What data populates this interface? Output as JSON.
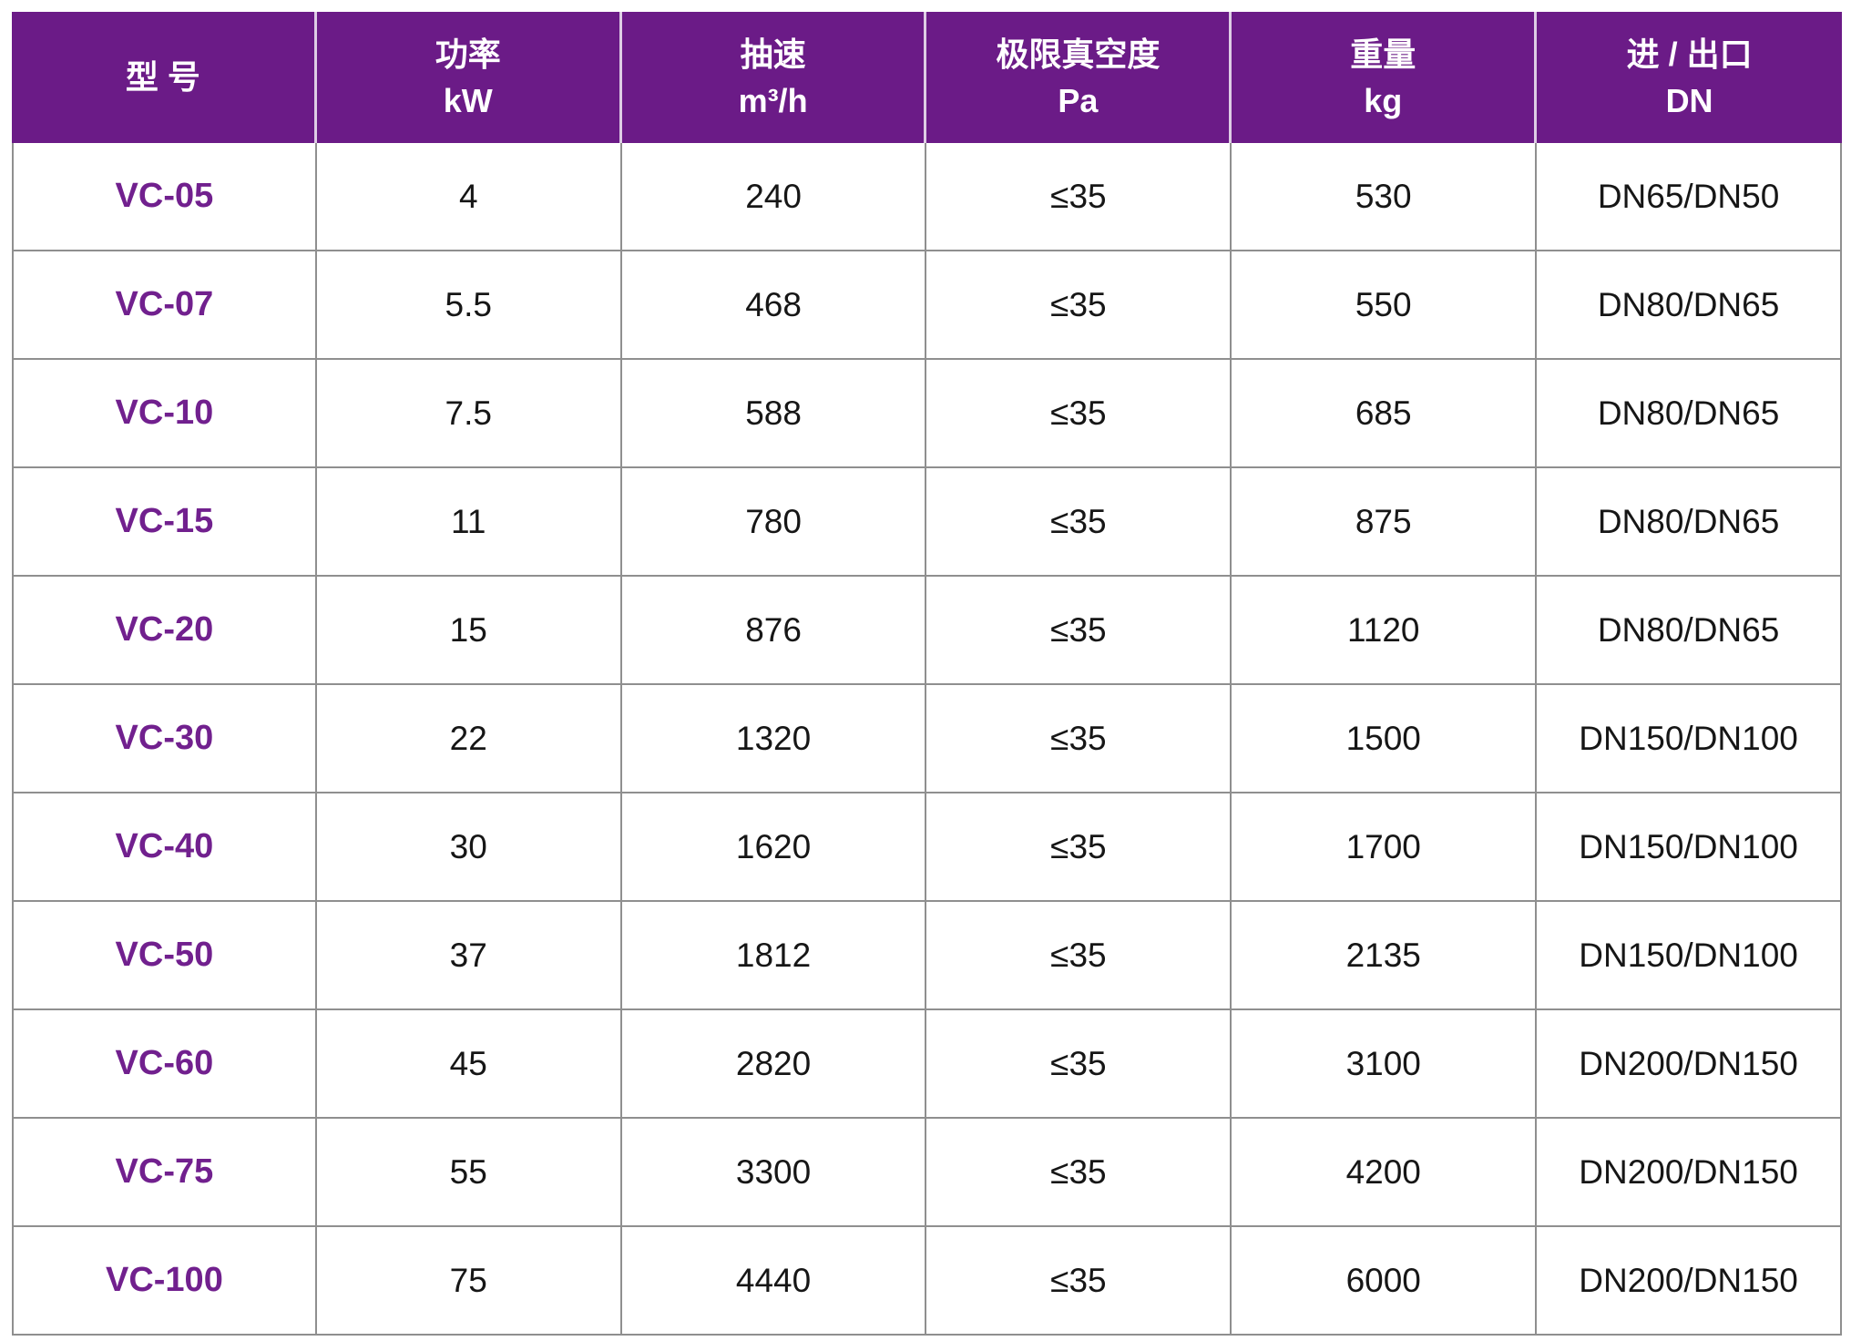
{
  "table": {
    "columns": [
      {
        "line1": "型  号",
        "line2": ""
      },
      {
        "line1": "功率",
        "line2": "kW"
      },
      {
        "line1": "抽速",
        "line2": "m³/h"
      },
      {
        "line1": "极限真空度",
        "line2": "Pa"
      },
      {
        "line1": "重量",
        "line2": "kg"
      },
      {
        "line1": "进 / 出口",
        "line2": "DN"
      }
    ],
    "rows": [
      {
        "model": "VC-05",
        "power": "4",
        "speed": "240",
        "vacuum": "≤35",
        "weight": "530",
        "port": "DN65/DN50"
      },
      {
        "model": "VC-07",
        "power": "5.5",
        "speed": "468",
        "vacuum": "≤35",
        "weight": "550",
        "port": "DN80/DN65"
      },
      {
        "model": "VC-10",
        "power": "7.5",
        "speed": "588",
        "vacuum": "≤35",
        "weight": "685",
        "port": "DN80/DN65"
      },
      {
        "model": "VC-15",
        "power": "11",
        "speed": "780",
        "vacuum": "≤35",
        "weight": "875",
        "port": "DN80/DN65"
      },
      {
        "model": "VC-20",
        "power": "15",
        "speed": "876",
        "vacuum": "≤35",
        "weight": "1120",
        "port": "DN80/DN65"
      },
      {
        "model": "VC-30",
        "power": "22",
        "speed": "1320",
        "vacuum": "≤35",
        "weight": "1500",
        "port": "DN150/DN100"
      },
      {
        "model": "VC-40",
        "power": "30",
        "speed": "1620",
        "vacuum": "≤35",
        "weight": "1700",
        "port": "DN150/DN100"
      },
      {
        "model": "VC-50",
        "power": "37",
        "speed": "1812",
        "vacuum": "≤35",
        "weight": "2135",
        "port": "DN150/DN100"
      },
      {
        "model": "VC-60",
        "power": "45",
        "speed": "2820",
        "vacuum": "≤35",
        "weight": "3100",
        "port": "DN200/DN150"
      },
      {
        "model": "VC-75",
        "power": "55",
        "speed": "3300",
        "vacuum": "≤35",
        "weight": "4200",
        "port": "DN200/DN150"
      },
      {
        "model": "VC-100",
        "power": "75",
        "speed": "4440",
        "vacuum": "≤35",
        "weight": "6000",
        "port": "DN200/DN150"
      }
    ]
  },
  "colors": {
    "header_bg": "#6B1B87",
    "header_text": "#FFFFFF",
    "model_text": "#71208E",
    "grid_line": "#8F8F8F",
    "body_text": "#161616",
    "page_bg": "#FFFFFF"
  }
}
